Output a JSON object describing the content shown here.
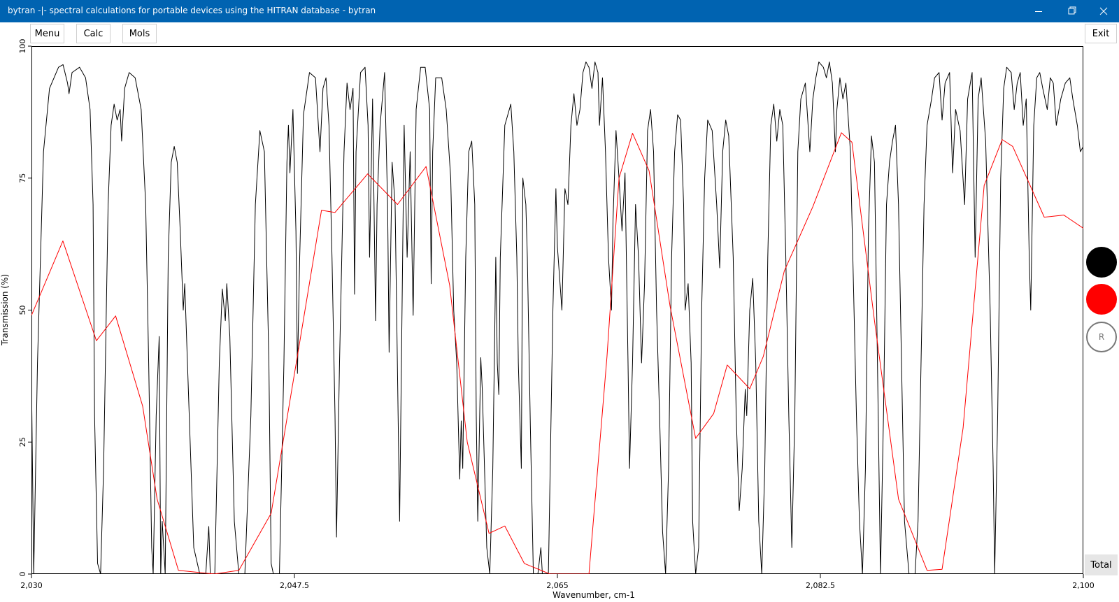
{
  "window": {
    "title": "bytran -|- spectral calculations for portable devices using the HITRAN database - bytran"
  },
  "toolbar": {
    "buttons": [
      "Menu",
      "Calc",
      "Mols"
    ],
    "exit": "Exit"
  },
  "side_panel": {
    "reset": "R",
    "total": "Total"
  },
  "chart_data": {
    "type": "line",
    "xlabel": "Wavenumber, cm-1",
    "ylabel": "Transmission (%)",
    "xlim": [
      2030,
      2100
    ],
    "xticks": [
      {
        "value": 2030,
        "label": "2,030"
      },
      {
        "value": 2047.5,
        "label": "2,047.5"
      },
      {
        "value": 2065,
        "label": "2,065"
      },
      {
        "value": 2082.5,
        "label": "2,082.5"
      },
      {
        "value": 2100,
        "label": "2,100"
      }
    ],
    "ylim": [
      0,
      100
    ],
    "yticks": [
      0,
      25,
      50,
      75,
      100
    ],
    "series": [
      {
        "color": "#000000",
        "x": [
          2030.0,
          2030.15,
          2030.4,
          2030.8,
          2031.2,
          2031.8,
          2032.1,
          2032.4,
          2032.5,
          2032.7,
          2033.2,
          2033.6,
          2033.9,
          2034.1,
          2034.2,
          2034.4,
          2034.6,
          2034.8,
          2035.1,
          2035.3,
          2035.5,
          2035.7,
          2035.9,
          2036.0,
          2036.2,
          2036.5,
          2036.9,
          2037.3,
          2037.6,
          2037.8,
          2038.0,
          2038.1,
          2038.3,
          2038.5,
          2038.6,
          2038.7,
          2038.9,
          2039.1,
          2039.3,
          2039.5,
          2039.7,
          2039.9,
          2040.1,
          2040.2,
          2040.5,
          2040.8,
          2041.2,
          2041.6,
          2041.8,
          2041.9,
          2042.2,
          2042.5,
          2042.7,
          2042.9,
          2043.0,
          2043.2,
          2043.5,
          2043.8,
          2044.2,
          2044.6,
          2044.9,
          2045.2,
          2045.5,
          2045.8,
          2045.95,
          2046.1,
          2046.5,
          2046.8,
          2047.0,
          2047.1,
          2047.2,
          2047.4,
          2047.6,
          2047.7,
          2047.85,
          2048.1,
          2048.5,
          2048.9,
          2049.2,
          2049.4,
          2049.6,
          2049.8,
          2050.0,
          2050.2,
          2050.3,
          2050.5,
          2050.8,
          2051.0,
          2051.2,
          2051.4,
          2051.5,
          2051.6,
          2051.9,
          2052.2,
          2052.4,
          2052.5,
          2052.7,
          2052.9,
          2053.0,
          2053.2,
          2053.5,
          2053.7,
          2053.8,
          2054.0,
          2054.2,
          2054.4,
          2054.5,
          2054.6,
          2054.8,
          2055.0,
          2055.2,
          2055.4,
          2055.6,
          2055.9,
          2056.2,
          2056.5,
          2056.6,
          2056.7,
          2056.9,
          2057.3,
          2057.6,
          2057.9,
          2058.1,
          2058.3,
          2058.5,
          2058.6,
          2058.7,
          2058.9,
          2059.1,
          2059.3,
          2059.5,
          2059.6,
          2059.7,
          2059.9,
          2060.0,
          2060.3,
          2060.5,
          2060.7,
          2060.9,
          2061.0,
          2061.1,
          2061.2,
          2061.5,
          2061.9,
          2062.1,
          2062.3,
          2062.4,
          2062.6,
          2062.7,
          2062.9,
          2063.0,
          2063.2,
          2063.4,
          2063.7,
          2063.9,
          2064.0,
          2064.4,
          2064.7,
          2064.9,
          2065.0,
          2065.3,
          2065.5,
          2065.7,
          2065.9,
          2066.1,
          2066.3,
          2066.5,
          2066.7,
          2066.9,
          2067.1,
          2067.3,
          2067.5,
          2067.7,
          2067.8,
          2068.0,
          2068.2,
          2068.4,
          2068.6,
          2068.7,
          2068.9,
          2069.1,
          2069.3,
          2069.5,
          2069.7,
          2069.8,
          2070.0,
          2070.2,
          2070.4,
          2070.6,
          2070.8,
          2071.0,
          2071.2,
          2071.4,
          2071.6,
          2071.8,
          2072.0,
          2072.2,
          2072.4,
          2072.6,
          2072.8,
          2073.0,
          2073.2,
          2073.4,
          2073.5,
          2073.7,
          2073.9,
          2074.0,
          2074.2,
          2074.4,
          2074.6,
          2074.8,
          2075.0,
          2075.3,
          2075.6,
          2075.8,
          2076.0,
          2076.2,
          2076.4,
          2076.7,
          2076.9,
          2077.1,
          2077.3,
          2077.5,
          2077.6,
          2077.8,
          2078.0,
          2078.2,
          2078.4,
          2078.6,
          2078.8,
          2079.0,
          2079.2,
          2079.4,
          2079.6,
          2079.8,
          2080.0,
          2080.2,
          2080.4,
          2080.6,
          2080.8,
          2081.0,
          2081.2,
          2081.5,
          2081.8,
          2082.0,
          2082.2,
          2082.4,
          2082.7,
          2082.9,
          2083.1,
          2083.3,
          2083.5,
          2083.6,
          2083.8,
          2084.0,
          2084.2,
          2084.5,
          2084.7,
          2084.9,
          2085.1,
          2085.3,
          2085.5,
          2085.7,
          2085.9,
          2086.1,
          2086.3,
          2086.5,
          2086.7,
          2086.9,
          2087.1,
          2087.3,
          2087.5,
          2087.7,
          2087.9,
          2088.1,
          2088.4,
          2088.8,
          2089.0,
          2089.2,
          2089.4,
          2089.6,
          2089.9,
          2090.1,
          2090.4,
          2090.6,
          2090.8,
          2091.1,
          2091.3,
          2091.5,
          2091.8,
          2092.1,
          2092.3,
          2092.6,
          2092.8,
          2093.0,
          2093.2,
          2093.5,
          2093.8,
          2094.0,
          2094.1,
          2094.3,
          2094.5,
          2094.7,
          2094.9,
          2095.2,
          2095.4,
          2095.6,
          2095.8,
          2096.0,
          2096.2,
          2096.4,
          2096.5,
          2096.7,
          2096.9,
          2097.1,
          2097.3,
          2097.6,
          2097.8,
          2098.0,
          2098.2,
          2098.5,
          2098.8,
          2099.1,
          2099.3,
          2099.6,
          2099.8,
          2100.0
        ],
        "values": [
          37,
          0,
          40,
          80,
          92,
          96,
          96.5,
          93,
          91,
          95,
          96,
          94,
          88,
          70,
          30,
          2,
          0,
          20,
          70,
          85,
          89,
          86,
          88,
          82,
          92,
          95,
          94,
          88,
          70,
          40,
          5,
          0,
          30,
          45,
          0,
          10,
          0,
          60,
          78,
          81,
          78,
          65,
          50,
          55,
          30,
          5,
          0,
          0,
          9,
          0,
          0,
          40,
          54,
          48,
          55,
          45,
          10,
          0,
          0,
          30,
          70,
          84,
          80,
          40,
          2,
          0,
          0,
          40,
          78,
          85,
          76,
          88,
          65,
          38,
          60,
          87,
          95,
          94,
          80,
          92,
          94,
          85,
          60,
          30,
          7,
          40,
          80,
          93,
          88,
          92,
          53,
          80,
          95,
          96,
          85,
          60,
          90,
          48,
          70,
          85,
          95,
          70,
          42,
          78,
          70,
          30,
          10,
          35,
          85,
          60,
          80,
          49,
          88,
          96,
          96,
          88,
          55,
          80,
          94,
          94,
          88,
          75,
          50,
          40,
          18,
          29,
          20,
          60,
          80,
          82,
          70,
          30,
          10,
          41,
          35,
          5,
          0,
          20,
          60,
          40,
          34,
          60,
          85,
          89,
          80,
          60,
          40,
          20,
          75,
          70,
          60,
          28,
          0,
          0,
          5,
          0,
          0,
          50,
          73,
          62,
          50,
          73,
          70,
          85,
          91,
          85,
          88,
          95,
          97,
          96,
          92,
          97,
          95,
          85,
          94,
          80,
          60,
          50,
          67,
          84,
          75,
          65,
          76,
          40,
          20,
          40,
          70,
          60,
          40,
          55,
          84,
          88,
          80,
          50,
          30,
          8,
          0,
          20,
          60,
          80,
          87,
          86,
          70,
          50,
          55,
          40,
          10,
          0,
          5,
          50,
          75,
          86,
          84,
          70,
          58,
          80,
          86,
          83,
          60,
          30,
          12,
          20,
          35,
          30,
          50,
          56,
          40,
          10,
          0,
          20,
          60,
          85,
          89,
          82,
          88,
          85,
          60,
          30,
          5,
          30,
          80,
          90,
          93,
          80,
          90,
          94,
          97,
          96,
          94,
          97,
          93,
          80,
          88,
          94,
          90,
          93,
          80,
          55,
          30,
          10,
          0,
          20,
          65,
          83,
          78,
          40,
          0,
          30,
          70,
          78,
          82,
          85,
          70,
          40,
          10,
          0,
          0,
          10,
          40,
          70,
          85,
          90,
          94,
          95,
          86,
          93,
          95,
          76,
          88,
          84,
          70,
          90,
          95,
          60,
          90,
          94,
          82,
          50,
          20,
          0,
          30,
          75,
          92,
          96,
          95,
          88,
          93,
          95,
          85,
          90,
          60,
          50,
          85,
          94,
          95,
          92,
          88,
          94,
          93,
          85,
          90,
          93,
          94,
          90,
          85,
          80,
          81
        ]
      },
      {
        "color": "#ff0000",
        "x": [
          2030,
          2032.09,
          2034.32,
          2035.6,
          2037.4,
          2038.36,
          2039.78,
          2042.16,
          2043.8,
          2045.95,
          2047.85,
          2049.3,
          2050.2,
          2052.37,
          2054.36,
          2056.26,
          2057.83,
          2059.0,
          2060.45,
          2061.5,
          2062.8,
          2064.5,
          2067.1,
          2068.3,
          2069.1,
          2070.0,
          2071.1,
          2072.5,
          2074.2,
          2075.4,
          2076.3,
          2077.8,
          2078.7,
          2080.1,
          2082.0,
          2083.9,
          2084.6,
          2086.1,
          2087.7,
          2089.6,
          2090.6,
          2092.0,
          2093.4,
          2094.6,
          2095.3,
          2097.4,
          2098.7,
          2100
        ],
        "values": [
          49,
          63.1,
          44.2,
          48.9,
          31.8,
          14.2,
          0.7,
          0,
          0.7,
          11.5,
          43.9,
          68.9,
          68.5,
          75.8,
          70,
          77.2,
          54.7,
          25,
          7.7,
          9.1,
          2,
          0,
          0,
          41.2,
          75,
          83.5,
          76.4,
          50.7,
          25.7,
          30.4,
          39.6,
          35.1,
          41.2,
          57.4,
          69.6,
          83.6,
          81.8,
          48,
          14.2,
          0.7,
          0.9,
          27.7,
          73.6,
          82.3,
          81,
          67.6,
          68,
          65.5
        ]
      }
    ]
  }
}
